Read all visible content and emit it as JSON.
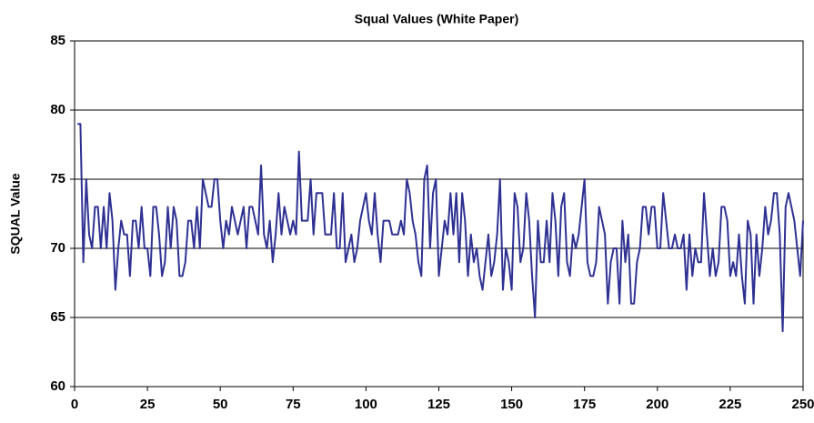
{
  "chart_data": {
    "type": "line",
    "title": "Squal Values (White Paper)",
    "y_label": "SQUAL Value",
    "color": "#2e3192",
    "grid": true,
    "xlim": [
      0,
      250
    ],
    "xticks": [
      0,
      25,
      50,
      75,
      100,
      125,
      150,
      175,
      200,
      225,
      250
    ],
    "ylim": [
      60,
      85
    ],
    "yticks": [
      60,
      65,
      70,
      75,
      80,
      85
    ],
    "x": [
      1,
      2,
      3,
      4,
      5,
      6,
      7,
      8,
      9,
      10,
      11,
      12,
      13,
      14,
      15,
      16,
      17,
      18,
      19,
      20,
      21,
      22,
      23,
      24,
      25,
      26,
      27,
      28,
      29,
      30,
      31,
      32,
      33,
      34,
      35,
      36,
      37,
      38,
      39,
      40,
      41,
      42,
      43,
      44,
      45,
      46,
      47,
      48,
      49,
      50,
      51,
      52,
      53,
      54,
      55,
      56,
      57,
      58,
      59,
      60,
      61,
      62,
      63,
      64,
      65,
      66,
      67,
      68,
      69,
      70,
      71,
      72,
      73,
      74,
      75,
      76,
      77,
      78,
      79,
      80,
      81,
      82,
      83,
      84,
      85,
      86,
      87,
      88,
      89,
      90,
      91,
      92,
      93,
      94,
      95,
      96,
      97,
      98,
      99,
      100,
      101,
      102,
      103,
      104,
      105,
      106,
      107,
      108,
      109,
      110,
      111,
      112,
      113,
      114,
      115,
      116,
      117,
      118,
      119,
      120,
      121,
      122,
      123,
      124,
      125,
      126,
      127,
      128,
      129,
      130,
      131,
      132,
      133,
      134,
      135,
      136,
      137,
      138,
      139,
      140,
      141,
      142,
      143,
      144,
      145,
      146,
      147,
      148,
      149,
      150,
      151,
      152,
      153,
      154,
      155,
      156,
      157,
      158,
      159,
      160,
      161,
      162,
      163,
      164,
      165,
      166,
      167,
      168,
      169,
      170,
      171,
      172,
      173,
      174,
      175,
      176,
      177,
      178,
      179,
      180,
      181,
      182,
      183,
      184,
      185,
      186,
      187,
      188,
      189,
      190,
      191,
      192,
      193,
      194,
      195,
      196,
      197,
      198,
      199,
      200,
      201,
      202,
      203,
      204,
      205,
      206,
      207,
      208,
      209,
      210,
      211,
      212,
      213,
      214,
      215,
      216,
      217,
      218,
      219,
      220,
      221,
      222,
      223,
      224,
      225,
      226,
      227,
      228,
      229,
      230,
      231,
      232,
      233,
      234,
      235,
      236,
      237,
      238,
      239,
      240,
      241,
      242,
      243,
      244,
      245,
      246,
      247,
      248,
      249,
      250
    ],
    "values": [
      79,
      79,
      69,
      75,
      71,
      70,
      73,
      73,
      70,
      73,
      70,
      74,
      72,
      67,
      70,
      72,
      71,
      71,
      68,
      72,
      72,
      70,
      73,
      70,
      70,
      68,
      73,
      73,
      71,
      68,
      69,
      73,
      70,
      73,
      72,
      68,
      68,
      69,
      72,
      72,
      70,
      73,
      70,
      75,
      74,
      73,
      73,
      75,
      75,
      72,
      70,
      72,
      71,
      73,
      72,
      71,
      72,
      73,
      70,
      73,
      73,
      72,
      71,
      76,
      71,
      70,
      72,
      69,
      71,
      74,
      71,
      73,
      72,
      71,
      72,
      71,
      77,
      72,
      72,
      72,
      75,
      71,
      74,
      74,
      74,
      71,
      71,
      71,
      74,
      70,
      70,
      74,
      69,
      70,
      71,
      69,
      70,
      72,
      73,
      74,
      72,
      71,
      74,
      71,
      69,
      72,
      72,
      72,
      71,
      71,
      71,
      72,
      71,
      75,
      74,
      72,
      71,
      69,
      68,
      75,
      76,
      70,
      74,
      75,
      68,
      70,
      72,
      71,
      74,
      71,
      74,
      69,
      74,
      72,
      68,
      71,
      69,
      70,
      68,
      67,
      69,
      71,
      68,
      69,
      71,
      75,
      67,
      70,
      69,
      67,
      74,
      73,
      69,
      70,
      74,
      72,
      68,
      65,
      72,
      69,
      69,
      72,
      69,
      74,
      72,
      68,
      73,
      74,
      69,
      68,
      71,
      70,
      71,
      73,
      75,
      69,
      68,
      68,
      69,
      73,
      72,
      71,
      66,
      69,
      70,
      70,
      66,
      72,
      69,
      71,
      66,
      66,
      69,
      70,
      73,
      73,
      71,
      73,
      73,
      70,
      70,
      74,
      72,
      70,
      70,
      71,
      70,
      70,
      71,
      67,
      71,
      68,
      70,
      69,
      69,
      74,
      71,
      68,
      70,
      68,
      69,
      73,
      73,
      72,
      68,
      69,
      68,
      71,
      68,
      66,
      72,
      71,
      66,
      71,
      68,
      70,
      73,
      71,
      72,
      74,
      74,
      71,
      64,
      73,
      74,
      73,
      72,
      70,
      68,
      72
    ]
  }
}
